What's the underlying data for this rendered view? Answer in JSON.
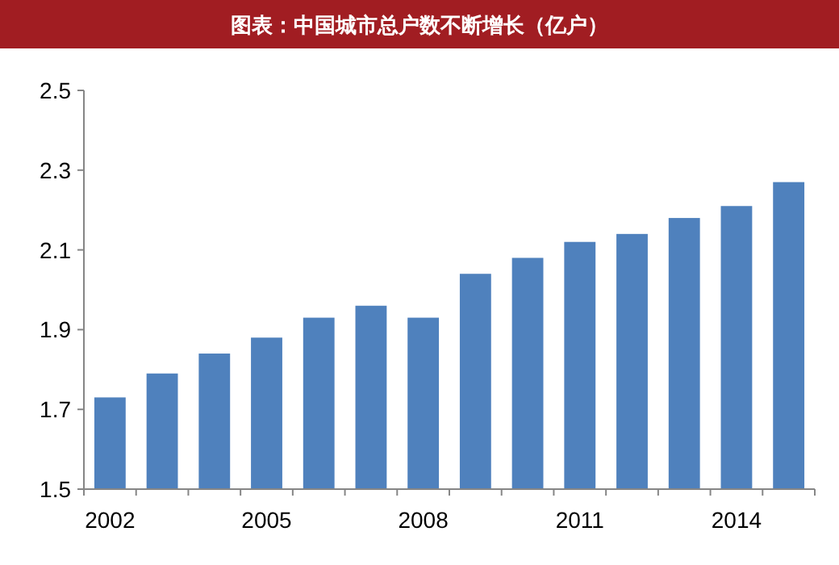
{
  "chart_data": {
    "type": "bar",
    "title": "图表：中国城市总户数不断增长（亿户）",
    "categories": [
      "2002",
      null,
      null,
      "2005",
      null,
      null,
      "2008",
      null,
      null,
      "2011",
      null,
      null,
      "2014",
      null
    ],
    "values": [
      1.73,
      1.79,
      1.84,
      1.88,
      1.93,
      1.96,
      1.93,
      2.04,
      2.08,
      2.12,
      2.14,
      2.18,
      2.21,
      2.27
    ],
    "color": "#4f81bd",
    "ylim": [
      1.5,
      2.5
    ],
    "yticks": [
      1.5,
      1.7,
      1.9,
      2.1,
      2.3,
      2.5
    ],
    "grid": false
  }
}
